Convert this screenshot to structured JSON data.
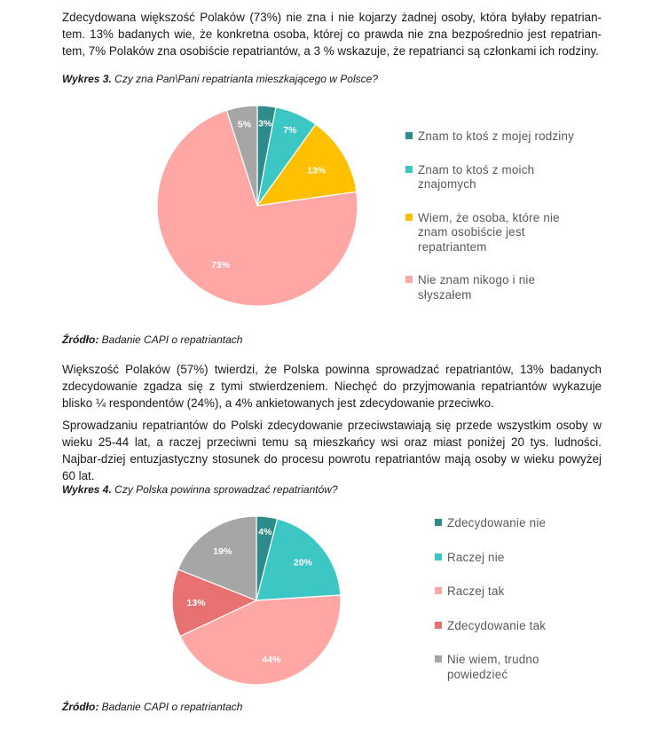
{
  "paragraphs": {
    "p1": "Zdecydowana większość Polaków (73%) nie zna i nie kojarzy żadnej osoby, która byłaby repatrian-tem. 13% badanych wie, że konkretna osoba, której co prawda nie zna bezpośrednio jest repatrian-tem, 7% Polaków zna osobiście repatriantów, a 3 % wskazuje, że repatrianci są członkami ich rodziny.",
    "p2": "Większość Polaków (57%) twierdzi, że Polska powinna sprowadzać repatriantów, 13% badanych zdecydowanie zgadza się z tymi stwierdzeniem. Niechęć do przyjmowania repatriantów wykazuje blisko ¼ respondentów (24%), a 4% ankietowanych jest zdecydowanie przeciwko.",
    "p3": "Sprowadzaniu repatriantów do Polski zdecydowanie przeciwstawiają się przede wszystkim osoby w wieku 25-44 lat, a raczej przeciwni temu są mieszkańcy wsi oraz miast poniżej 20 tys. ludności. Najbar-dziej entuzjastyczny stosunek do procesu powrotu repatriantów mają osoby w wieku powyżej 60 lat."
  },
  "chart3": {
    "caption_bold": "Wykres 3.",
    "caption_text": " Czy zna Pan\\Pani repatrianta mieszkającego w Polsce?",
    "source_bold": "Źródło:",
    "source_text": " Badanie CAPI o repatriantach"
  },
  "chart4": {
    "caption_bold": "Wykres 4.",
    "caption_text": " Czy Polska powinna sprowadzać repatriantów?",
    "source_bold": "Źródło:",
    "source_text": " Badanie CAPI o repatriantach"
  },
  "chart_data": [
    {
      "type": "pie",
      "title": "",
      "slices": [
        {
          "name": "Znam to ktoś z mojej rodziny",
          "value": 3,
          "label": "3%",
          "color": "#2e8b8b"
        },
        {
          "name": "Znam to ktoś z moich znajomych",
          "value": 7,
          "label": "7%",
          "color": "#3cc6c4"
        },
        {
          "name": "Wiem, że osoba, które nie znam osobiście jest repatriantem",
          "value": 13,
          "label": "13%",
          "color": "#ffc000"
        },
        {
          "name": "Nie znam nikogo i nie słyszałem",
          "value": 73,
          "label": "73%",
          "color": "#ffa7a5"
        },
        {
          "name": "",
          "value": 5,
          "label": "5%",
          "color": "#a6a6a6"
        }
      ],
      "legend_placement": "right"
    },
    {
      "type": "pie",
      "title": "",
      "slices": [
        {
          "name": "Zdecydowanie nie",
          "value": 4,
          "label": "4%",
          "color": "#2e8b8b"
        },
        {
          "name": "Raczej nie",
          "value": 20,
          "label": "20%",
          "color": "#3cc6c4"
        },
        {
          "name": "Raczej tak",
          "value": 44,
          "label": "44%",
          "color": "#ffa7a5"
        },
        {
          "name": "Zdecydowanie tak",
          "value": 13,
          "label": "13%",
          "color": "#e87272"
        },
        {
          "name": "Nie wiem, trudno powiedzieć",
          "value": 19,
          "label": "19%",
          "color": "#a6a6a6"
        }
      ],
      "legend_placement": "right"
    }
  ]
}
